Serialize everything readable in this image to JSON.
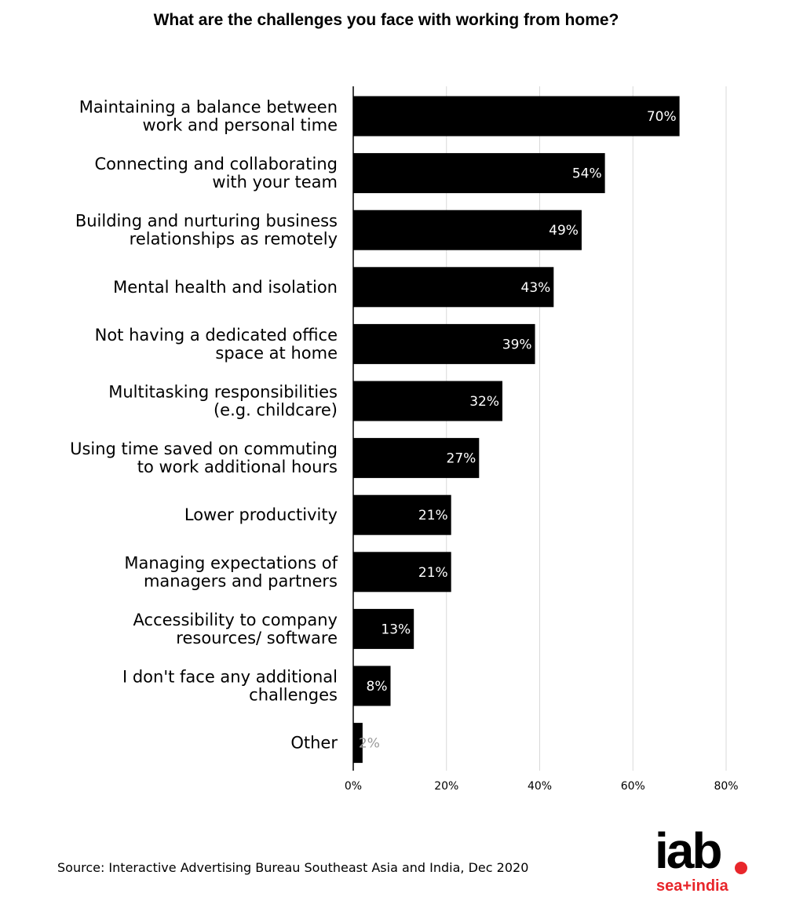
{
  "title": "What are the challenges you face with working from home?",
  "source": "Source: Interactive Advertising Bureau Southeast Asia and India, Dec 2020",
  "logo": {
    "main": "iab",
    "sub": "sea+india",
    "accent_color": "#e8262b"
  },
  "chart_data": {
    "type": "bar",
    "orientation": "horizontal",
    "title": "What are the challenges you face with working from home?",
    "categories": [
      [
        "Maintaining a balance between",
        "work and personal time"
      ],
      [
        "Connecting and collaborating",
        "with your team"
      ],
      [
        "Building and nurturing business",
        "relationships as remotely"
      ],
      [
        "Mental health and isolation"
      ],
      [
        "Not having a dedicated office",
        "space at home"
      ],
      [
        "Multitasking responsibilities",
        "(e.g. childcare)"
      ],
      [
        "Using time saved on commuting",
        "to work additional hours"
      ],
      [
        "Lower productivity"
      ],
      [
        "Managing expectations of",
        "managers and partners"
      ],
      [
        "Accessibility to company",
        "resources/ software"
      ],
      [
        "I don't face any additional",
        "challenges"
      ],
      [
        "Other"
      ]
    ],
    "values": [
      70,
      54,
      49,
      43,
      39,
      32,
      27,
      21,
      21,
      13,
      8,
      2
    ],
    "value_labels": [
      "70%",
      "54%",
      "49%",
      "43%",
      "39%",
      "32%",
      "27%",
      "21%",
      "21%",
      "13%",
      "8%",
      "2%"
    ],
    "xlim": [
      0,
      80
    ],
    "xticks": [
      0,
      20,
      40,
      60,
      80
    ],
    "xtick_labels": [
      "0%",
      "20%",
      "40%",
      "60%",
      "80%"
    ],
    "grid": true,
    "bar_color": "#000000",
    "grid_color": "#d9d9d9"
  }
}
